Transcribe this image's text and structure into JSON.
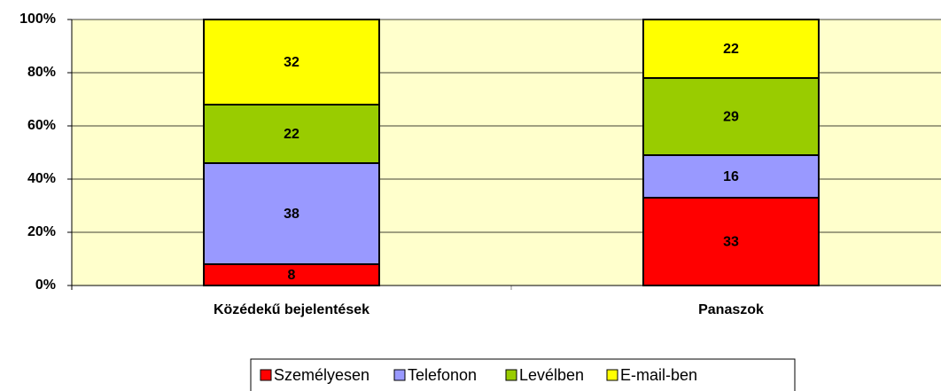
{
  "chart_data": {
    "type": "stacked_bar",
    "categories": [
      "Közédekű bejelentések",
      "Panaszok"
    ],
    "series": [
      {
        "name": "Személyesen",
        "color": "#ff0000",
        "values": [
          8,
          33
        ]
      },
      {
        "name": "Telefonon",
        "color": "#9999ff",
        "values": [
          38,
          16
        ]
      },
      {
        "name": "Levélben",
        "color": "#99cc00",
        "values": [
          22,
          29
        ]
      },
      {
        "name": "E-mail-ben",
        "color": "#ffff00",
        "values": [
          32,
          22
        ]
      }
    ],
    "ylim": [
      0,
      100
    ],
    "yticks": [
      {
        "value": 0,
        "label": "0%"
      },
      {
        "value": 20,
        "label": "20%"
      },
      {
        "value": 40,
        "label": "40%"
      },
      {
        "value": 60,
        "label": "60%"
      },
      {
        "value": 80,
        "label": "80%"
      },
      {
        "value": 100,
        "label": "100%"
      }
    ],
    "grid": true,
    "legend": "bottom",
    "plot_background": "#ffffcc"
  }
}
